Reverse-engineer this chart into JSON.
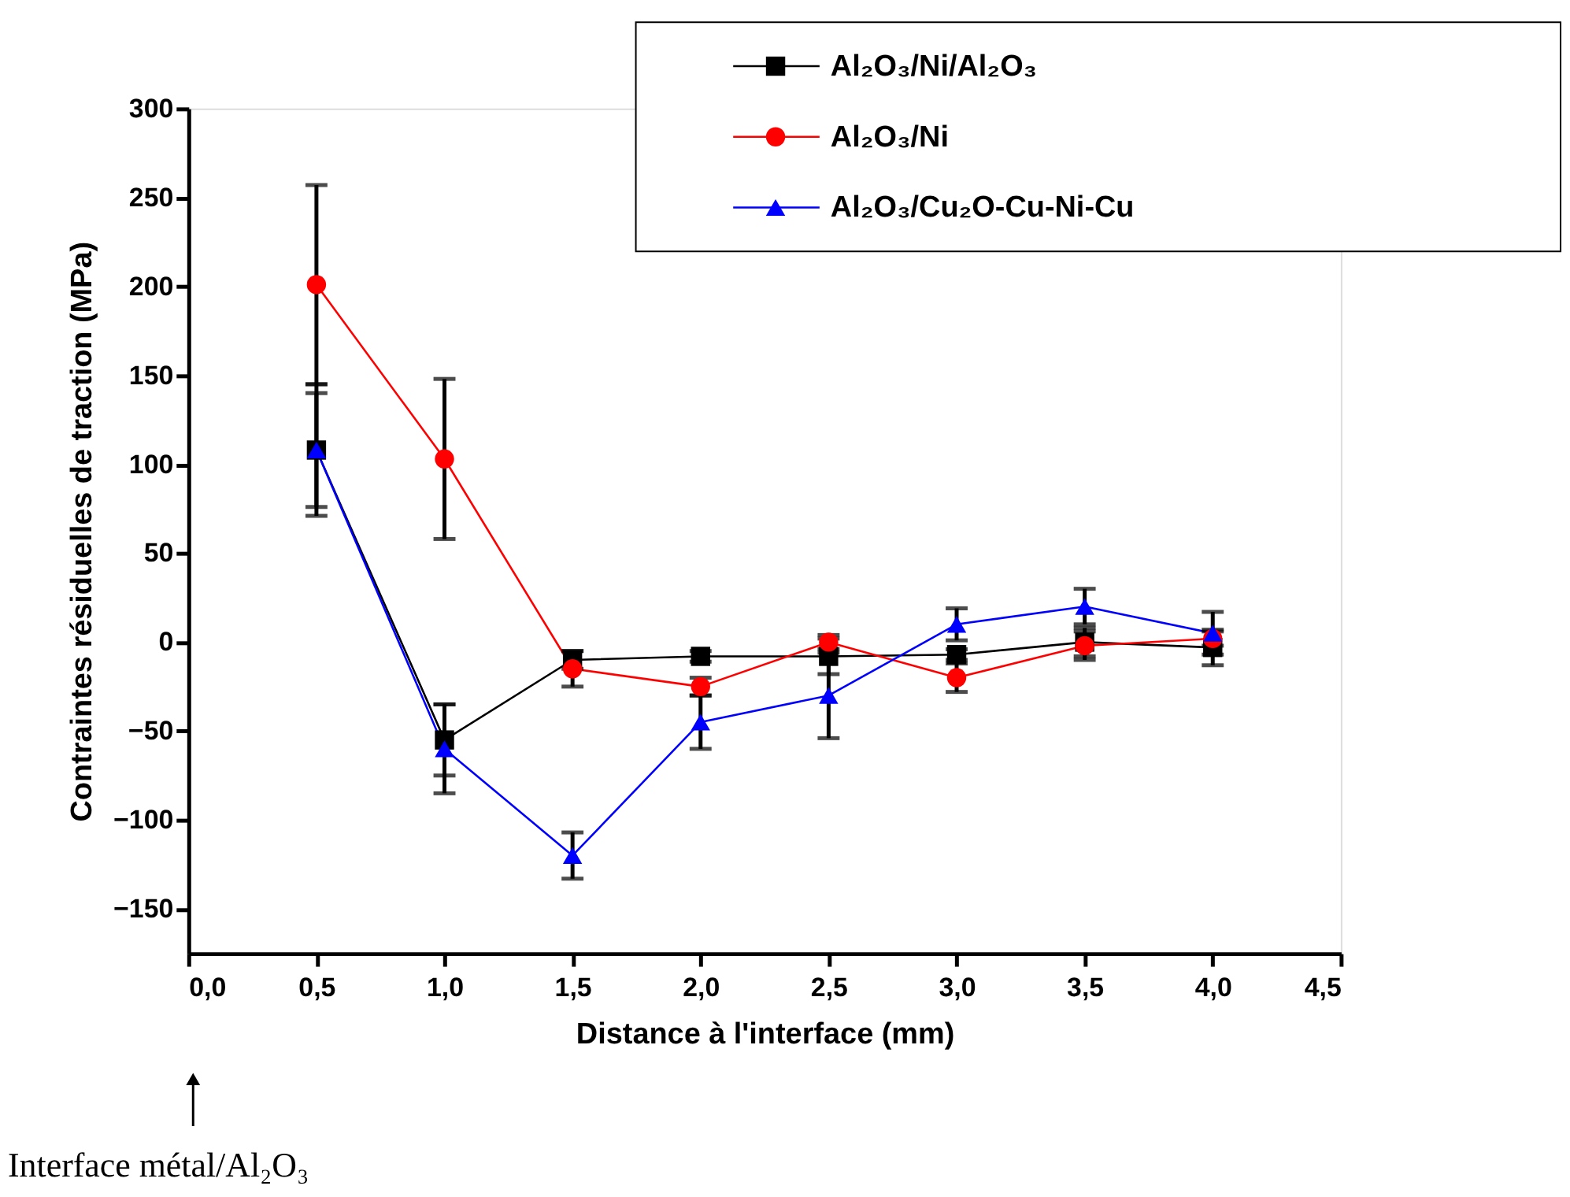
{
  "chart_data": {
    "type": "line",
    "xlabel": "Distance à l'interface (mm)",
    "ylabel": "Contraintes résiduelles de traction (MPa)",
    "x": [
      0.5,
      1.0,
      1.5,
      2.0,
      2.5,
      3.0,
      3.5,
      4.0
    ],
    "series": [
      {
        "name": "Al₂O₃/Ni/Al₂O₃",
        "color": "#000000",
        "marker": "square",
        "values": [
          108,
          -55,
          -10,
          -8,
          -8,
          -7,
          0,
          -3
        ],
        "errors": [
          32,
          20,
          5,
          3,
          10,
          3,
          8,
          10
        ]
      },
      {
        "name": "Al₂O₃/Ni",
        "color": "#ff0000",
        "marker": "circle",
        "values": [
          201,
          103,
          -15,
          -25,
          0,
          -20,
          -2,
          2
        ],
        "errors": [
          56,
          45,
          10,
          5,
          4,
          8,
          8,
          4
        ]
      },
      {
        "name": "Al₂O₃/Cu₂O-Cu-Ni-Cu",
        "color": "#0000ff",
        "marker": "triangle",
        "values": [
          108,
          -60,
          -120,
          -45,
          -30,
          10,
          20,
          5
        ],
        "errors": [
          37,
          25,
          13,
          15,
          24,
          9,
          10,
          12
        ]
      }
    ],
    "xlim": [
      0,
      4.5
    ],
    "ylim": [
      -175,
      300
    ],
    "xticks": [
      {
        "value": 0,
        "label": "0,0"
      },
      {
        "value": 0.5,
        "label": "0,5"
      },
      {
        "value": 1,
        "label": "1,0"
      },
      {
        "value": 1.5,
        "label": "1,5"
      },
      {
        "value": 2,
        "label": "2,0"
      },
      {
        "value": 2.5,
        "label": "2,5"
      },
      {
        "value": 3,
        "label": "3,0"
      },
      {
        "value": 3.5,
        "label": "3,5"
      },
      {
        "value": 4,
        "label": "4,0"
      },
      {
        "value": 4.5,
        "label": "4,5"
      }
    ],
    "yticks": [
      -150,
      -100,
      -50,
      0,
      50,
      100,
      150,
      200,
      250,
      300
    ],
    "legend": "top right",
    "grid": false,
    "line_style": "solid",
    "annotations": [
      "Interface métal/Al₂O₃"
    ]
  }
}
